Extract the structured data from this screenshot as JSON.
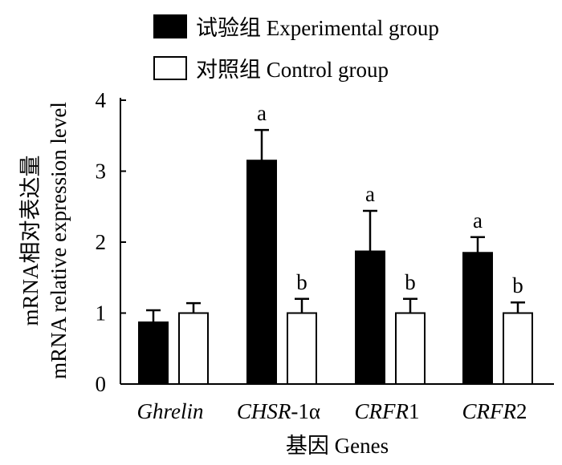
{
  "chart_data": {
    "type": "bar",
    "title": "",
    "xlabel": "基因 Genes",
    "ylabel_line1": "mRNA相对表达量",
    "ylabel_line2": "mRNA relative expression level",
    "ylim": [
      0,
      4
    ],
    "yticks": [
      "0",
      "1",
      "2",
      "3",
      "4"
    ],
    "grid": false,
    "legend_position": "top",
    "categories": [
      {
        "label": "Ghrelin",
        "italic": "Ghrelin",
        "plain": ""
      },
      {
        "label": "CHSR-1α",
        "italic": "CHSR",
        "plain": "-1α"
      },
      {
        "label": "CRFR1",
        "italic": "CRFR",
        "plain": "1"
      },
      {
        "label": "CRFR2",
        "italic": "CRFR",
        "plain": "2"
      }
    ],
    "series": [
      {
        "name": "试验组 Experimental group",
        "fill": "#000000",
        "values": [
          0.87,
          3.15,
          1.87,
          1.85
        ],
        "errors": [
          0.17,
          0.43,
          0.57,
          0.22
        ],
        "labels": [
          "",
          "a",
          "a",
          "a"
        ]
      },
      {
        "name": "对照组 Control group",
        "fill": "#ffffff",
        "values": [
          1.0,
          1.0,
          1.0,
          1.0
        ],
        "errors": [
          0.14,
          0.2,
          0.2,
          0.15
        ],
        "labels": [
          "",
          "b",
          "b",
          "b"
        ]
      }
    ]
  }
}
